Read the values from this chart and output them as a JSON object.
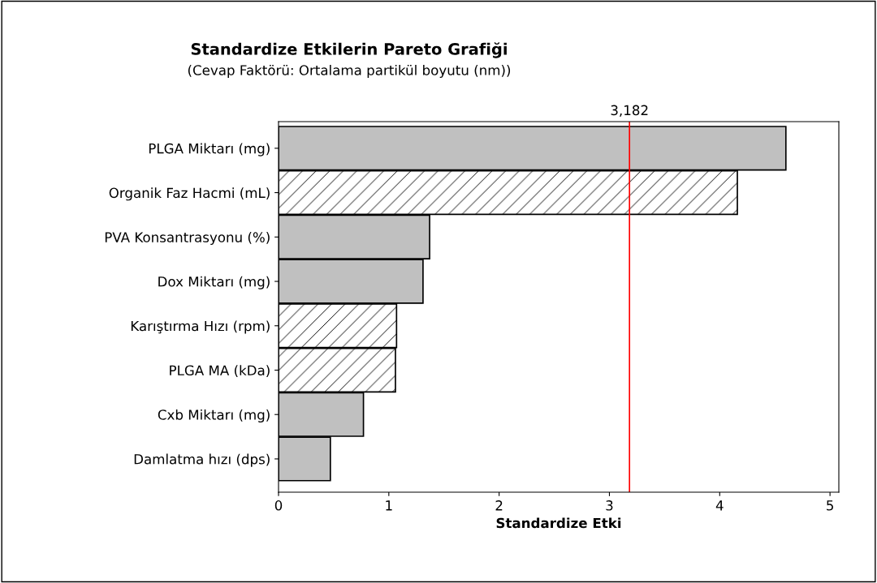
{
  "chart_data": {
    "type": "bar",
    "orientation": "horizontal",
    "title": "Standardize Etkilerin Pareto Grafiği",
    "subtitle": "(Cevap Faktörü: Ortalama partikül boyutu (nm))",
    "xlabel": "Standardize Etki",
    "categories": [
      "PLGA Miktarı (mg)",
      "Organik Faz Hacmi (mL)",
      "PVA Konsantrasyonu (%)",
      "Dox Miktarı (mg)",
      "Karıştırma Hızı (rpm)",
      "PLGA MA (kDa)",
      "Cxb Miktarı (mg)",
      "Damlatma hızı (dps)"
    ],
    "values": [
      4.6,
      4.16,
      1.37,
      1.31,
      1.07,
      1.06,
      0.77,
      0.47
    ],
    "colors": [
      "#c0c0c0",
      "#ffffff",
      "#c0c0c0",
      "#c0c0c0",
      "#ffffff",
      "#ffffff",
      "#c0c0c0",
      "#c0c0c0"
    ],
    "xlim": [
      0,
      5.08
    ],
    "xticks": [
      0,
      1,
      2,
      3,
      4,
      5
    ],
    "ref_lines": [
      {
        "axis": "x",
        "value": 3.182,
        "label": "3,182",
        "color": "#ff0000"
      }
    ],
    "grid": false,
    "legend": false
  }
}
